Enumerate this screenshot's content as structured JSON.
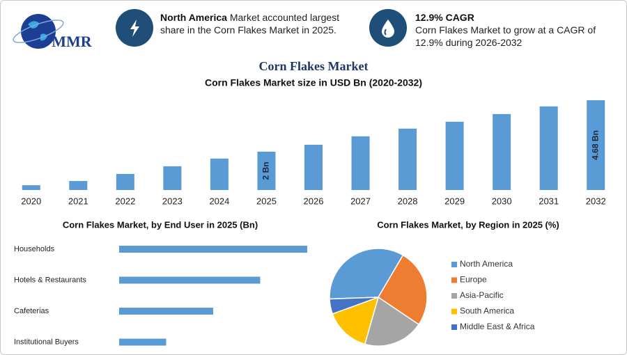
{
  "header": {
    "logo_text": "MMR",
    "highlights": [
      {
        "title": "North America",
        "text": "Market accounted largest share in the Corn Flakes Market in 2025."
      },
      {
        "title": "12.9% CAGR",
        "text": "Corn Flakes Market to grow at a CAGR of 12.9% during 2026-2032"
      }
    ]
  },
  "chart_data": [
    {
      "type": "bar",
      "title": "Corn Flakes Market",
      "subtitle": "Corn Flakes Market size in USD Bn (2020-2032)",
      "categories": [
        "2020",
        "2021",
        "2022",
        "2023",
        "2024",
        "2025",
        "2026",
        "2027",
        "2028",
        "2029",
        "2030",
        "2031",
        "2032"
      ],
      "values": [
        0.25,
        0.47,
        0.84,
        1.24,
        1.64,
        2,
        2.36,
        2.8,
        3.2,
        3.56,
        3.96,
        4.36,
        4.68
      ],
      "value_labels": [
        null,
        null,
        null,
        null,
        null,
        "2 Bn",
        null,
        null,
        null,
        null,
        null,
        null,
        "4.68 Bn"
      ],
      "color": "#5b9bd5"
    },
    {
      "type": "hbar",
      "title": "Corn Flakes Market, by End User in 2025 (Bn)",
      "categories": [
        "Households",
        "Hotels & Restaurants",
        "Cafeterias",
        "Institutional Buyers"
      ],
      "values": [
        0.8,
        0.6,
        0.4,
        0.2
      ],
      "color": "#5b9bd5"
    },
    {
      "type": "pie",
      "title": "Corn Flakes Market, by Region in 2025 (%)",
      "categories": [
        "North America",
        "Europe",
        "Asia-Pacific",
        "South America",
        "Middle East & Africa"
      ],
      "values": [
        34,
        26,
        20,
        15,
        5
      ],
      "colors": [
        "#5b9bd5",
        "#ed7d31",
        "#a5a5a5",
        "#ffc000",
        "#4472c4"
      ],
      "legend": "right"
    }
  ]
}
